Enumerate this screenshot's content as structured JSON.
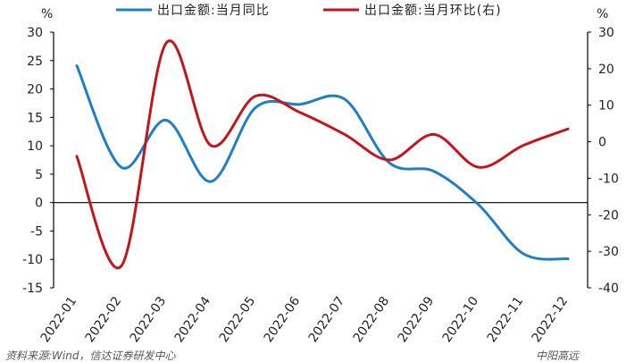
{
  "chart_data": {
    "type": "line",
    "categories": [
      "2022-01",
      "2022-02",
      "2022-03",
      "2022-04",
      "2022-05",
      "2022-06",
      "2022-07",
      "2022-08",
      "2022-09",
      "2022-10",
      "2022-11",
      "2022-12"
    ],
    "y_unit_left": "%",
    "y_unit_right": "%",
    "ylim_left": [
      -15,
      30
    ],
    "yticks_left": [
      -15,
      -10,
      -5,
      0,
      5,
      10,
      15,
      20,
      25,
      30
    ],
    "ylim_right": [
      -40,
      30
    ],
    "yticks_right": [
      -40,
      -30,
      -20,
      -10,
      0,
      10,
      20,
      30
    ],
    "series": [
      {
        "name": "出口金额:当月同比",
        "axis": "left",
        "color": "#1f7ec4",
        "values": [
          24.1,
          6.2,
          14.5,
          3.7,
          16.7,
          17.3,
          18.2,
          7.0,
          5.5,
          -0.4,
          -9.0,
          -9.9
        ]
      },
      {
        "name": "出口金额:当月环比(右)",
        "axis": "right",
        "color": "#c0161c",
        "values": [
          -4.0,
          -34.0,
          27.0,
          -1.0,
          12.5,
          8.0,
          2.0,
          -5.0,
          2.0,
          -7.0,
          -1.0,
          3.5
        ]
      }
    ],
    "grid": false,
    "legend_position": "top"
  },
  "footer": {
    "source": "资料来源:Wind，信达证券研发中心",
    "watermark": "中阳高远"
  }
}
